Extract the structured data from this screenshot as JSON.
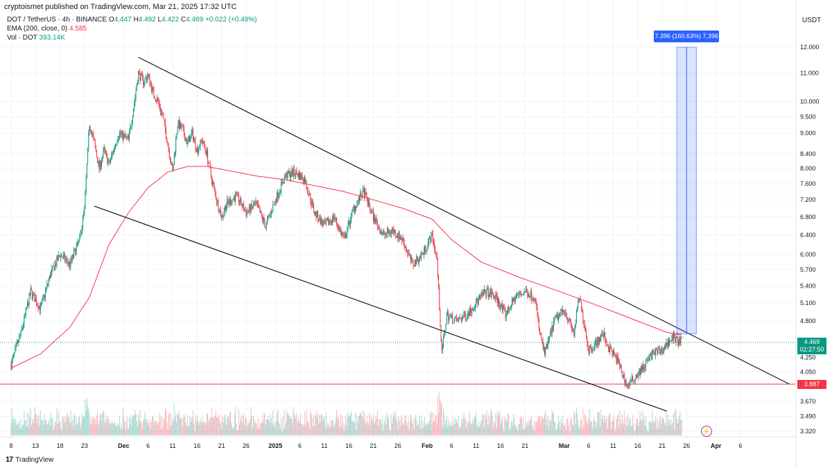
{
  "publish_line": "cryptoismet published on TradingView.com, Mar 21, 2025 17:32 UTC",
  "legend": {
    "symbol": "DOT / TetherUS · 4h · BINANCE",
    "open_label": "O",
    "open": "4.447",
    "high_label": "H",
    "high": "4.492",
    "low_label": "L",
    "low": "4.422",
    "close_label": "C",
    "close": "4.469",
    "change": "+0.022 (+0.49%)",
    "ema_label": "EMA (200, close, 0)",
    "ema_value": "4.585",
    "vol_label": "Vol · DOT",
    "vol_value": "393.14K"
  },
  "axis_unit": "USDT",
  "measure_label": "7.396 (160.63%) 7,396",
  "last_price": "4.469",
  "countdown": "02:27:50",
  "support_price": "3.887",
  "brand": "TradingView",
  "colors": {
    "up": "#089981",
    "down": "#f23645",
    "ema": "#f23645",
    "trendline": "#131722",
    "measure": "#2962ff"
  },
  "chart_data": {
    "type": "candlestick",
    "title": "DOT / TetherUS · 4h · BINANCE",
    "scale": "log",
    "y_ticks": [
      12.0,
      11.0,
      10.0,
      9.5,
      9.0,
      8.4,
      8.0,
      7.6,
      7.2,
      6.8,
      6.4,
      6.0,
      5.7,
      5.4,
      5.1,
      4.8,
      4.25,
      4.05,
      3.67,
      3.49,
      3.32
    ],
    "y_tick_labels": [
      "12.000",
      "11.000",
      "10.000",
      "9.500",
      "9.000",
      "8.400",
      "8.000",
      "7.600",
      "7.200",
      "6.800",
      "6.400",
      "6.000",
      "5.700",
      "5.400",
      "5.100",
      "4.800",
      "4.250",
      "4.050",
      "3.670",
      "3.490",
      "3.320"
    ],
    "ylim": [
      3.3,
      12.6
    ],
    "x_ticks": [
      {
        "label": "8",
        "day": 0
      },
      {
        "label": "13",
        "day": 5
      },
      {
        "label": "18",
        "day": 10
      },
      {
        "label": "23",
        "day": 15
      },
      {
        "label": "Dec",
        "day": 23
      },
      {
        "label": "6",
        "day": 28
      },
      {
        "label": "11",
        "day": 33
      },
      {
        "label": "16",
        "day": 38
      },
      {
        "label": "21",
        "day": 43
      },
      {
        "label": "26",
        "day": 48
      },
      {
        "label": "2025",
        "day": 54
      },
      {
        "label": "6",
        "day": 59
      },
      {
        "label": "11",
        "day": 64
      },
      {
        "label": "16",
        "day": 69
      },
      {
        "label": "21",
        "day": 74
      },
      {
        "label": "26",
        "day": 79
      },
      {
        "label": "Feb",
        "day": 85
      },
      {
        "label": "6",
        "day": 90
      },
      {
        "label": "11",
        "day": 95
      },
      {
        "label": "16",
        "day": 100
      },
      {
        "label": "21",
        "day": 105
      },
      {
        "label": "Mar",
        "day": 113
      },
      {
        "label": "6",
        "day": 118
      },
      {
        "label": "11",
        "day": 123
      },
      {
        "label": "16",
        "day": 128
      },
      {
        "label": "21",
        "day": 133
      },
      {
        "label": "26",
        "day": 138
      },
      {
        "label": "Apr",
        "day": 144
      },
      {
        "label": "6",
        "day": 149
      }
    ],
    "x_unit": "days since Nov 8, 2024",
    "price_path": [
      {
        "day": 0,
        "price": 4.15
      },
      {
        "day": 2,
        "price": 4.6
      },
      {
        "day": 4,
        "price": 5.3
      },
      {
        "day": 6,
        "price": 5.0
      },
      {
        "day": 8,
        "price": 5.6
      },
      {
        "day": 10,
        "price": 6.0
      },
      {
        "day": 12,
        "price": 5.8
      },
      {
        "day": 14,
        "price": 6.3
      },
      {
        "day": 15,
        "price": 7.0
      },
      {
        "day": 16,
        "price": 9.3
      },
      {
        "day": 17,
        "price": 8.7
      },
      {
        "day": 18,
        "price": 8.0
      },
      {
        "day": 19,
        "price": 8.5
      },
      {
        "day": 20,
        "price": 8.1
      },
      {
        "day": 22,
        "price": 9.0
      },
      {
        "day": 24,
        "price": 8.8
      },
      {
        "day": 25,
        "price": 9.8
      },
      {
        "day": 26,
        "price": 11.0
      },
      {
        "day": 27,
        "price": 10.7
      },
      {
        "day": 28,
        "price": 10.9
      },
      {
        "day": 29,
        "price": 10.3
      },
      {
        "day": 30,
        "price": 10.0
      },
      {
        "day": 31,
        "price": 9.5
      },
      {
        "day": 32,
        "price": 8.7
      },
      {
        "day": 33,
        "price": 7.9
      },
      {
        "day": 34,
        "price": 9.3
      },
      {
        "day": 35,
        "price": 9.1
      },
      {
        "day": 36,
        "price": 8.7
      },
      {
        "day": 37,
        "price": 9.0
      },
      {
        "day": 38,
        "price": 8.5
      },
      {
        "day": 39,
        "price": 8.8
      },
      {
        "day": 40,
        "price": 8.4
      },
      {
        "day": 41,
        "price": 7.7
      },
      {
        "day": 42,
        "price": 7.2
      },
      {
        "day": 43,
        "price": 6.8
      },
      {
        "day": 44,
        "price": 7.1
      },
      {
        "day": 46,
        "price": 7.3
      },
      {
        "day": 48,
        "price": 6.9
      },
      {
        "day": 50,
        "price": 7.1
      },
      {
        "day": 52,
        "price": 6.6
      },
      {
        "day": 54,
        "price": 7.2
      },
      {
        "day": 56,
        "price": 7.8
      },
      {
        "day": 58,
        "price": 7.9
      },
      {
        "day": 60,
        "price": 7.7
      },
      {
        "day": 62,
        "price": 6.9
      },
      {
        "day": 64,
        "price": 6.6
      },
      {
        "day": 66,
        "price": 6.8
      },
      {
        "day": 68,
        "price": 6.3
      },
      {
        "day": 70,
        "price": 7.0
      },
      {
        "day": 72,
        "price": 7.4
      },
      {
        "day": 74,
        "price": 6.8
      },
      {
        "day": 76,
        "price": 6.4
      },
      {
        "day": 78,
        "price": 6.5
      },
      {
        "day": 80,
        "price": 6.3
      },
      {
        "day": 82,
        "price": 5.8
      },
      {
        "day": 84,
        "price": 6.0
      },
      {
        "day": 86,
        "price": 6.4
      },
      {
        "day": 87,
        "price": 5.9
      },
      {
        "day": 88,
        "price": 4.3
      },
      {
        "day": 89,
        "price": 4.9
      },
      {
        "day": 91,
        "price": 4.8
      },
      {
        "day": 93,
        "price": 4.9
      },
      {
        "day": 95,
        "price": 5.1
      },
      {
        "day": 97,
        "price": 5.3
      },
      {
        "day": 99,
        "price": 5.2
      },
      {
        "day": 101,
        "price": 4.9
      },
      {
        "day": 103,
        "price": 5.2
      },
      {
        "day": 105,
        "price": 5.3
      },
      {
        "day": 107,
        "price": 5.2
      },
      {
        "day": 108,
        "price": 4.6
      },
      {
        "day": 109,
        "price": 4.3
      },
      {
        "day": 111,
        "price": 4.8
      },
      {
        "day": 113,
        "price": 5.0
      },
      {
        "day": 115,
        "price": 4.6
      },
      {
        "day": 116,
        "price": 5.2
      },
      {
        "day": 117,
        "price": 4.8
      },
      {
        "day": 118,
        "price": 4.35
      },
      {
        "day": 120,
        "price": 4.5
      },
      {
        "day": 121,
        "price": 4.6
      },
      {
        "day": 122,
        "price": 4.4
      },
      {
        "day": 124,
        "price": 4.2
      },
      {
        "day": 125,
        "price": 4.0
      },
      {
        "day": 126,
        "price": 3.85
      },
      {
        "day": 127,
        "price": 3.95
      },
      {
        "day": 129,
        "price": 4.1
      },
      {
        "day": 131,
        "price": 4.3
      },
      {
        "day": 133,
        "price": 4.35
      },
      {
        "day": 135,
        "price": 4.55
      },
      {
        "day": 137,
        "price": 4.469
      }
    ],
    "ema_path": [
      {
        "day": 0,
        "price": 4.1
      },
      {
        "day": 6,
        "price": 4.3
      },
      {
        "day": 12,
        "price": 4.7
      },
      {
        "day": 16,
        "price": 5.2
      },
      {
        "day": 20,
        "price": 6.2
      },
      {
        "day": 24,
        "price": 6.9
      },
      {
        "day": 28,
        "price": 7.5
      },
      {
        "day": 32,
        "price": 7.9
      },
      {
        "day": 36,
        "price": 8.05
      },
      {
        "day": 40,
        "price": 8.05
      },
      {
        "day": 44,
        "price": 7.95
      },
      {
        "day": 50,
        "price": 7.8
      },
      {
        "day": 56,
        "price": 7.7
      },
      {
        "day": 62,
        "price": 7.55
      },
      {
        "day": 68,
        "price": 7.4
      },
      {
        "day": 74,
        "price": 7.2
      },
      {
        "day": 80,
        "price": 7.0
      },
      {
        "day": 86,
        "price": 6.75
      },
      {
        "day": 90,
        "price": 6.3
      },
      {
        "day": 96,
        "price": 5.85
      },
      {
        "day": 104,
        "price": 5.55
      },
      {
        "day": 112,
        "price": 5.3
      },
      {
        "day": 120,
        "price": 5.05
      },
      {
        "day": 128,
        "price": 4.8
      },
      {
        "day": 134,
        "price": 4.62
      },
      {
        "day": 137,
        "price": 4.585
      }
    ],
    "upper_trendline": [
      {
        "day": 26,
        "price": 11.6
      },
      {
        "day": 159,
        "price": 3.887
      }
    ],
    "lower_trendline": [
      {
        "day": 17,
        "price": 7.05
      },
      {
        "day": 134,
        "price": 3.55
      }
    ],
    "support_level": 3.887,
    "measure": {
      "day_from": 136,
      "day_to": 140,
      "price_from": 4.6,
      "price_to": 12.0
    }
  }
}
